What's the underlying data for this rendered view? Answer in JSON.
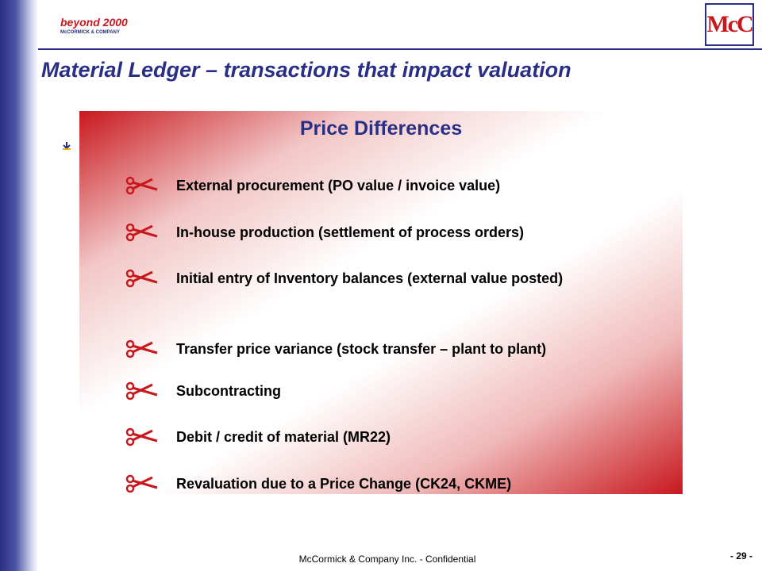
{
  "header": {
    "logo_main": "beyond 2000",
    "logo_sub": "McCORMICK & COMPANY",
    "brand": "McC"
  },
  "title": "Material Ledger – transactions that impact valuation",
  "box": {
    "heading": "Price Differences",
    "items": [
      "External procurement (PO value / invoice value)",
      "In-house production (settlement of process orders)",
      "Initial entry of Inventory balances (external value posted)",
      "Transfer price variance (stock transfer – plant to plant)",
      "Subcontracting",
      "Debit / credit of material  (MR22)",
      " Revaluation due to a Price Change (CK24, CKME)"
    ]
  },
  "footer": {
    "text": "McCormick & Company Inc. - Confidential",
    "page": "- 29 -"
  }
}
